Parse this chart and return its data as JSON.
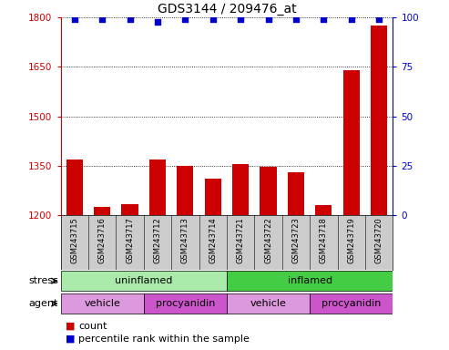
{
  "title": "GDS3144 / 209476_at",
  "samples": [
    "GSM243715",
    "GSM243716",
    "GSM243717",
    "GSM243712",
    "GSM243713",
    "GSM243714",
    "GSM243721",
    "GSM243722",
    "GSM243723",
    "GSM243718",
    "GSM243719",
    "GSM243720"
  ],
  "counts": [
    1370,
    1225,
    1235,
    1370,
    1350,
    1310,
    1355,
    1348,
    1330,
    1230,
    1640,
    1775
  ],
  "percentile_ranks": [
    99,
    99,
    99,
    98,
    99,
    99,
    99,
    99,
    99,
    99,
    99,
    99
  ],
  "ylim_left": [
    1200,
    1800
  ],
  "ylim_right": [
    0,
    100
  ],
  "yticks_left": [
    1200,
    1350,
    1500,
    1650,
    1800
  ],
  "yticks_right": [
    0,
    25,
    50,
    75,
    100
  ],
  "bar_color": "#cc0000",
  "dot_color": "#0000cc",
  "bar_width": 0.6,
  "stress_groups": [
    {
      "label": "uninflamed",
      "start": 0,
      "end": 6,
      "color": "#aaeaaa"
    },
    {
      "label": "inflamed",
      "start": 6,
      "end": 12,
      "color": "#44cc44"
    }
  ],
  "agent_groups": [
    {
      "label": "vehicle",
      "start": 0,
      "end": 3,
      "color": "#dd99dd"
    },
    {
      "label": "procyanidin",
      "start": 3,
      "end": 6,
      "color": "#cc55cc"
    },
    {
      "label": "vehicle",
      "start": 6,
      "end": 9,
      "color": "#dd99dd"
    },
    {
      "label": "procyanidin",
      "start": 9,
      "end": 12,
      "color": "#cc55cc"
    }
  ],
  "stress_label": "stress",
  "agent_label": "agent",
  "legend_count_label": "count",
  "legend_pct_label": "percentile rank within the sample",
  "ylabel_left_color": "#cc0000",
  "ylabel_right_color": "#0000cc",
  "title_fontsize": 10,
  "tick_fontsize": 7.5,
  "sample_fontsize": 6,
  "row_fontsize": 8,
  "legend_fontsize": 8
}
